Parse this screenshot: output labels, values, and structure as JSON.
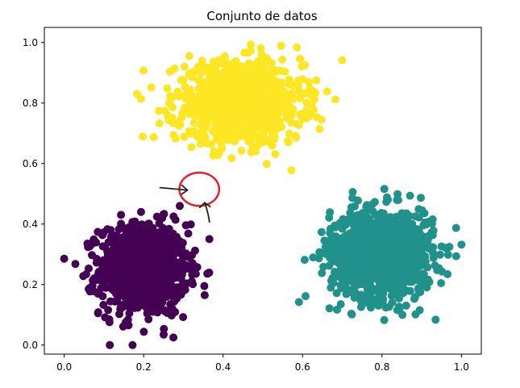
{
  "chart_data": {
    "type": "scatter",
    "title": "Conjunto de datos",
    "xlabel": "",
    "ylabel": "",
    "xlim": [
      -0.05,
      1.05
    ],
    "ylim": [
      -0.03,
      1.05
    ],
    "xticks": [
      0.0,
      0.2,
      0.4,
      0.6,
      0.8,
      1.0
    ],
    "yticks": [
      0.0,
      0.2,
      0.4,
      0.6,
      0.8,
      1.0
    ],
    "xtick_labels": [
      "0.0",
      "0.2",
      "0.4",
      "0.6",
      "0.8",
      "1.0"
    ],
    "ytick_labels": [
      "0.0",
      "0.2",
      "0.4",
      "0.6",
      "0.8",
      "1.0"
    ],
    "grid": false,
    "clusters": [
      {
        "color": "#440154",
        "center": [
          0.2,
          0.25
        ],
        "spread": [
          0.055,
          0.075
        ],
        "count": 1000,
        "x_range": [
          0.0,
          0.42
        ],
        "y_range": [
          0.0,
          0.46
        ]
      },
      {
        "color": "#21918c",
        "center": [
          0.8,
          0.3
        ],
        "spread": [
          0.065,
          0.075
        ],
        "count": 1000,
        "x_range": [
          0.54,
          1.0
        ],
        "y_range": [
          0.02,
          0.54
        ]
      },
      {
        "color": "#fde725",
        "center": [
          0.44,
          0.8
        ],
        "spread": [
          0.08,
          0.065
        ],
        "count": 1000,
        "x_range": [
          0.14,
          0.7
        ],
        "y_range": [
          0.49,
          1.0
        ]
      }
    ],
    "annotation": {
      "shape": "circle",
      "color": "#e8202a",
      "center": [
        0.34,
        0.515
      ],
      "radius_x": 0.05,
      "radius_y": 0.055,
      "arrows_color": "#222222"
    }
  }
}
